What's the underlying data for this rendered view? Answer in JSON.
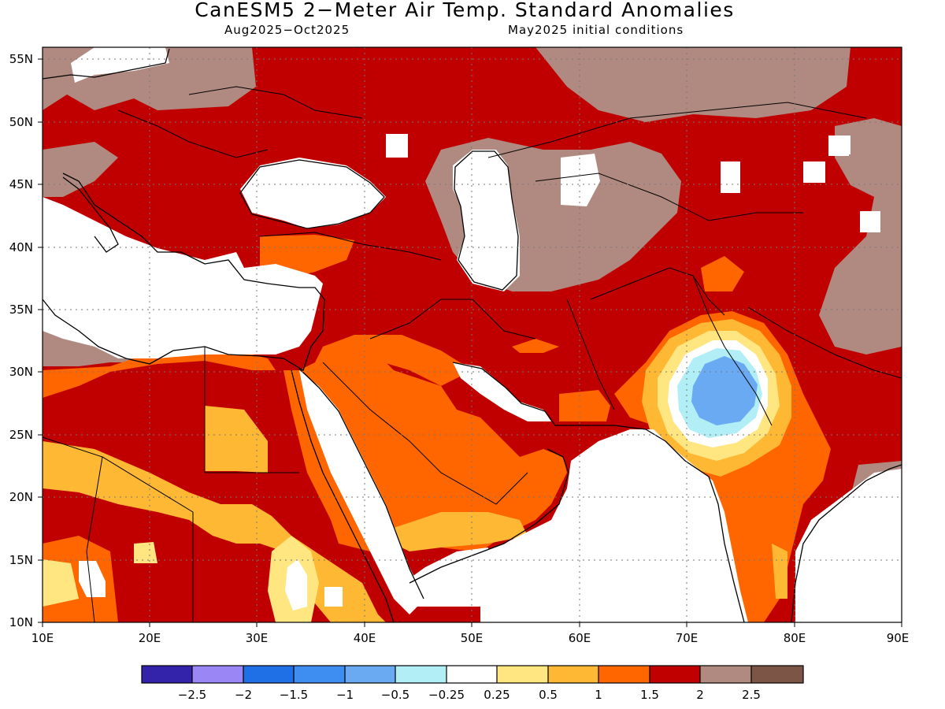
{
  "title": "CanESM5 2−Meter Air Temp. Standard Anomalies",
  "subtitle_left": "Aug2025−Oct2025",
  "subtitle_right": "May2025 initial conditions",
  "map": {
    "lon_range": [
      10,
      90
    ],
    "lat_range": [
      10,
      56
    ],
    "lat_ticks": [
      "10N",
      "15N",
      "20N",
      "25N",
      "30N",
      "35N",
      "40N",
      "45N",
      "50N",
      "55N"
    ],
    "lon_ticks": [
      "10E",
      "20E",
      "30E",
      "40E",
      "50E",
      "60E",
      "70E",
      "80E",
      "90E"
    ],
    "grid": "dotted"
  },
  "legend": {
    "colors": [
      "#3322aa",
      "#9a86f5",
      "#1f6fe6",
      "#3d8ef0",
      "#6aaaf2",
      "#b2eef5",
      "#ffffff",
      "#ffe680",
      "#ffb833",
      "#ff6600",
      "#c00000",
      "#b08a80",
      "#7d5546"
    ],
    "labels": [
      "−2.5",
      "−2",
      "−1.5",
      "−1",
      "−0.5",
      "−0.25",
      "0.25",
      "0.5",
      "1",
      "1.5",
      "2",
      "2.5"
    ]
  }
}
